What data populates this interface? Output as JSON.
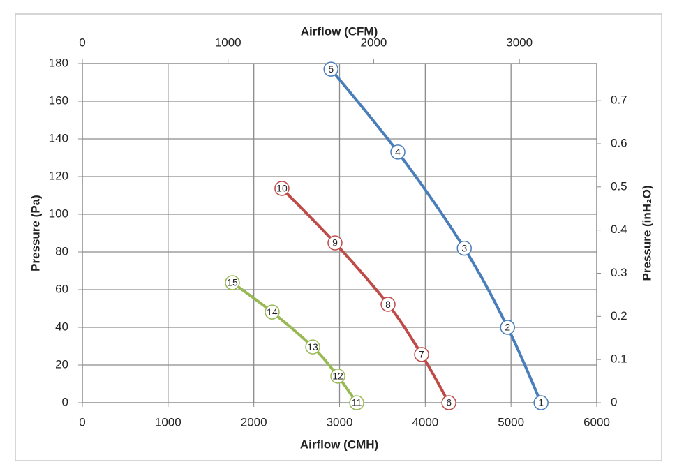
{
  "chart_data": {
    "type": "line",
    "x_label": "Airflow (CMH)",
    "x2_label": "Airflow (CFM)",
    "y_label": "Pressure (Pa)",
    "y2_label": "Pressure (inH₂O)",
    "xlim": [
      0,
      6000
    ],
    "xticks": [
      0,
      1000,
      2000,
      3000,
      4000,
      5000,
      6000
    ],
    "x2lim": [
      0,
      3531
    ],
    "x2ticks": [
      0,
      1000,
      2000,
      3000
    ],
    "ylim": [
      0,
      180
    ],
    "yticks": [
      0,
      20,
      40,
      60,
      80,
      100,
      120,
      140,
      160,
      180
    ],
    "y2lim": [
      0,
      0.786
    ],
    "y2ticks": [
      0,
      0.1,
      0.2,
      0.3,
      0.4,
      0.5,
      0.6,
      0.7
    ],
    "grid": true,
    "series": [
      {
        "color": "#4a7ebb",
        "x": [
          5350,
          4960,
          4455,
          3680,
          2900
        ],
        "values": [
          0,
          40,
          82,
          133,
          177
        ],
        "labels": [
          "1",
          "2",
          "3",
          "4",
          "5"
        ]
      },
      {
        "color": "#be4b48",
        "x": [
          4275,
          3957,
          3566,
          2947,
          2328
        ],
        "values": [
          0,
          25.6,
          52.2,
          84.8,
          113.7
        ],
        "labels": [
          "6",
          "7",
          "8",
          "9",
          "10"
        ]
      },
      {
        "color": "#98b954",
        "x": [
          3200,
          2980,
          2687,
          2214,
          1750
        ],
        "values": [
          0,
          14.1,
          29.6,
          48.1,
          63.7
        ],
        "labels": [
          "11",
          "12",
          "13",
          "14",
          "15"
        ]
      }
    ]
  }
}
